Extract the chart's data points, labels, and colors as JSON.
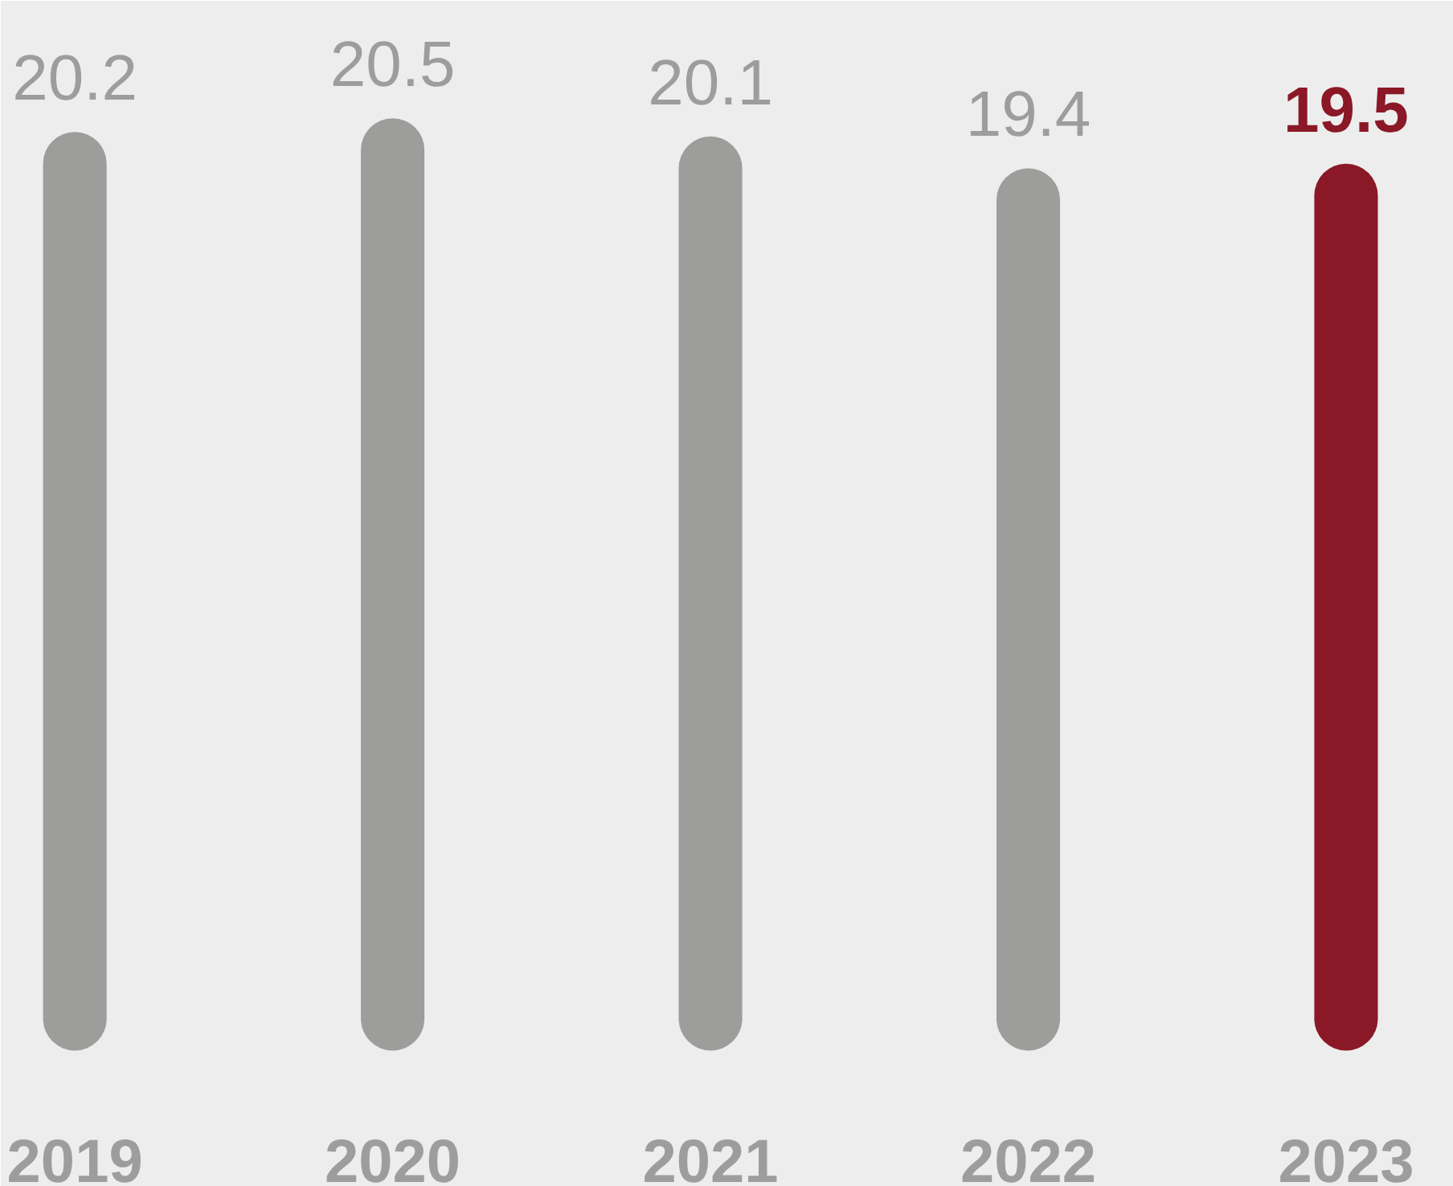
{
  "chart_data": {
    "type": "bar",
    "categories": [
      "2019",
      "2020",
      "2021",
      "2022",
      "2023"
    ],
    "values": [
      20.2,
      20.5,
      20.1,
      19.4,
      19.5
    ],
    "colors": [
      "#9d9d9c",
      "#9d9d9c",
      "#9d9d9c",
      "#9d9d9c",
      "#8b1826"
    ],
    "data_labels": true
  }
}
